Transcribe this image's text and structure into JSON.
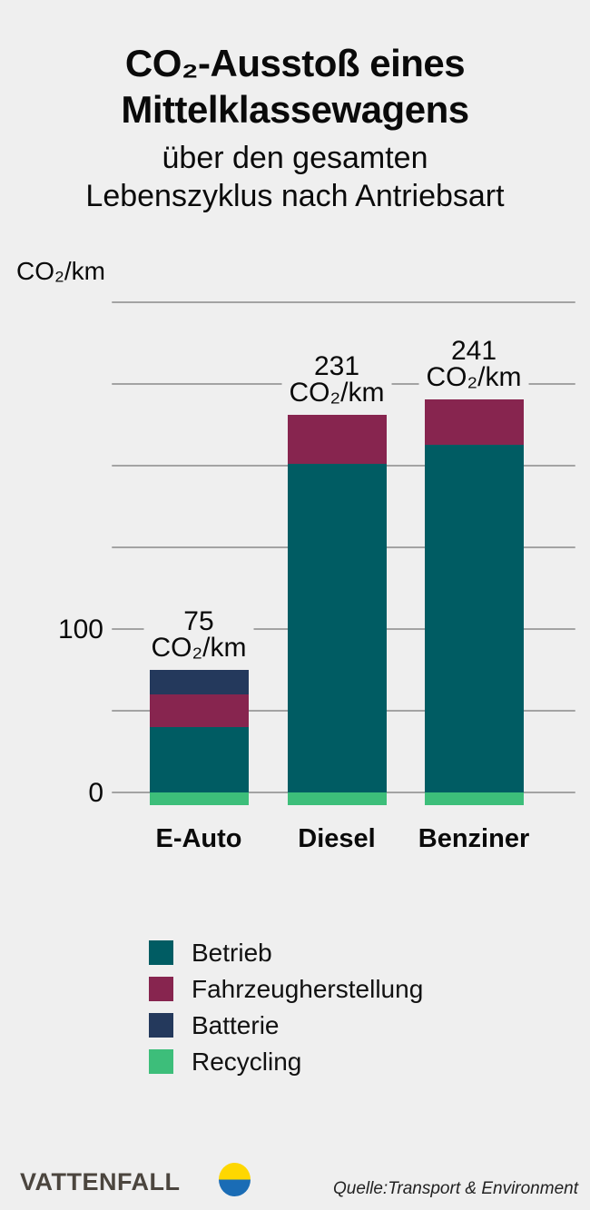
{
  "header": {
    "title_lines": [
      "CO₂-Ausstoß eines",
      "Mittelklassewagens"
    ],
    "subtitle_lines": [
      "über den gesamten",
      "Lebenszyklus nach Antriebsart"
    ]
  },
  "chart_data": {
    "type": "bar",
    "variant": "stacked",
    "title": "CO₂-Ausstoß eines Mittelklassewagens über den gesamten Lebenszyklus nach Antriebsart",
    "ylabel": "CO₂/km",
    "ylim": [
      -10,
      300
    ],
    "grid": true,
    "gridline_values": [
      0,
      50,
      100,
      150,
      200,
      250,
      300
    ],
    "axis_ticks": [
      {
        "value": 100,
        "label": "100"
      },
      {
        "value": 0,
        "label": "0"
      }
    ],
    "categories": [
      "E-Auto",
      "Diesel",
      "Benziner"
    ],
    "series": [
      {
        "name": "Betrieb",
        "color": "#005c63",
        "values": [
          40,
          201,
          213
        ]
      },
      {
        "name": "Fahrzeugherstellung",
        "color": "#87254f",
        "values": [
          20,
          30,
          28
        ]
      },
      {
        "name": "Batterie",
        "color": "#24395c",
        "values": [
          15,
          0,
          0
        ]
      },
      {
        "name": "Recycling",
        "color": "#3dbe7a",
        "values": [
          -8,
          -8,
          -8
        ]
      }
    ],
    "bars": [
      {
        "category": "E-Auto",
        "total": 75,
        "label_lines": [
          "75",
          "CO₂/km"
        ]
      },
      {
        "category": "Diesel",
        "total": 231,
        "label_lines": [
          "231",
          "CO₂/km"
        ]
      },
      {
        "category": "Benziner",
        "total": 241,
        "label_lines": [
          "241",
          "CO₂/km"
        ]
      }
    ],
    "legend_position": "bottom-left"
  },
  "legend": {
    "items": [
      {
        "label": "Betrieb",
        "color": "#005c63"
      },
      {
        "label": "Fahrzeugherstellung",
        "color": "#87254f"
      },
      {
        "label": "Batterie",
        "color": "#24395c"
      },
      {
        "label": "Recycling",
        "color": "#3dbe7a"
      }
    ]
  },
  "footer": {
    "brand": "VATTENFALL",
    "source": "Quelle:Transport & Environment",
    "logo_colors": {
      "top": "#fed700",
      "bottom": "#1a6cb5"
    }
  },
  "colors": {
    "background": "#efefef",
    "gridline": "#a3a3a3",
    "text": "#0a0a0a"
  }
}
